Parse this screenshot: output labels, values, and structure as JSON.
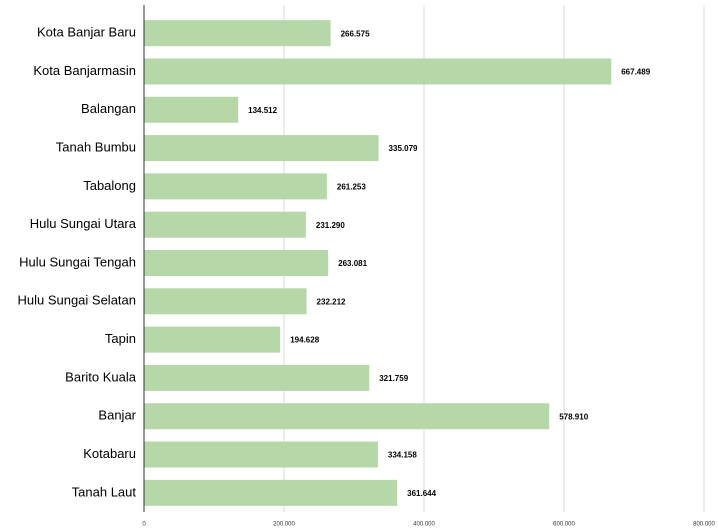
{
  "chart_data": {
    "type": "bar",
    "orientation": "horizontal",
    "categories": [
      "Kota Banjar Baru",
      "Kota Banjarmasin",
      "Balangan",
      "Tanah Bumbu",
      "Tabalong",
      "Hulu Sungai Utara",
      "Hulu Sungai Tengah",
      "Hulu Sungai Selatan",
      "Tapin",
      "Barito Kuala",
      "Banjar",
      "Kotabaru",
      "Tanah Laut"
    ],
    "values": [
      266575,
      667489,
      134512,
      335079,
      261253,
      231290,
      263081,
      232212,
      194628,
      321759,
      578910,
      334158,
      361644
    ],
    "value_labels": [
      "266.575",
      "667.489",
      "134.512",
      "335.079",
      "261.253",
      "231.290",
      "263.081",
      "232.212",
      "194.628",
      "321.759",
      "578.910",
      "334.158",
      "361.644"
    ],
    "color": "#b6d7a8",
    "xlim": [
      0,
      800000
    ],
    "xticks": [
      0,
      {
        "value": 200000,
        "label": "200.000"
      },
      {
        "value": 400000,
        "label": "400.000"
      },
      {
        "value": 600000,
        "label": "600.000"
      },
      {
        "value": 800000,
        "label": "800.000"
      }
    ],
    "grid": true
  }
}
